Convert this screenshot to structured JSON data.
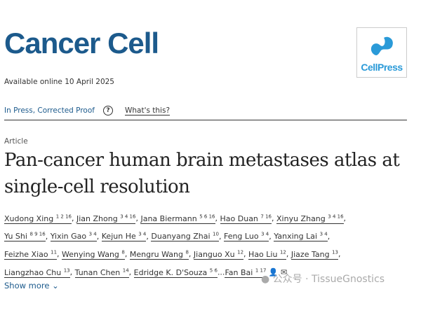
{
  "journal": "Cancer Cell",
  "publisher_logo": "CellPress",
  "available": "Available online 10 April 2025",
  "status": "In Press, Corrected Proof",
  "whats_this": "What's this?",
  "article_type": "Article",
  "title_lines": [
    "Pan-cancer human brain metastases atlas at",
    "single-cell resolution"
  ],
  "authors": [
    {
      "name": "Xudong Xing",
      "sup": "1 2 16"
    },
    {
      "name": "Jian Zhong",
      "sup": "3 4 16"
    },
    {
      "name": "Jana Biermann",
      "sup": "5 6 16"
    },
    {
      "name": "Hao Duan",
      "sup": "7 16"
    },
    {
      "name": "Xinyu Zhang",
      "sup": "3 4 16"
    },
    {
      "name": "Yu Shi",
      "sup": "8 9 16"
    },
    {
      "name": "Yixin Gao",
      "sup": "3 4"
    },
    {
      "name": "Kejun He",
      "sup": "3 4"
    },
    {
      "name": "Duanyang Zhai",
      "sup": "10"
    },
    {
      "name": "Feng Luo",
      "sup": "3 4"
    },
    {
      "name": "Yanxing Lai",
      "sup": "3 4"
    },
    {
      "name": "Feizhe Xiao",
      "sup": "11"
    },
    {
      "name": "Wenying Wang",
      "sup": "8"
    },
    {
      "name": "Mengru Wang",
      "sup": "8"
    },
    {
      "name": "Jianguo Xu",
      "sup": "12"
    },
    {
      "name": "Hao Liu",
      "sup": "12"
    },
    {
      "name": "Jiaze Tang",
      "sup": "13"
    },
    {
      "name": "Liangzhao Chu",
      "sup": "13"
    },
    {
      "name": "Tunan Chen",
      "sup": "14"
    },
    {
      "name": "Edridge K. D'Souza",
      "sup": "5 6"
    },
    {
      "name": "Fan Bai",
      "sup": "1 17"
    }
  ],
  "show_more": "Show more",
  "watermark": "公众号 · TissueGnostics",
  "colors": {
    "brand": "#1c5a8c",
    "cellpress": "#2a9ad8"
  }
}
